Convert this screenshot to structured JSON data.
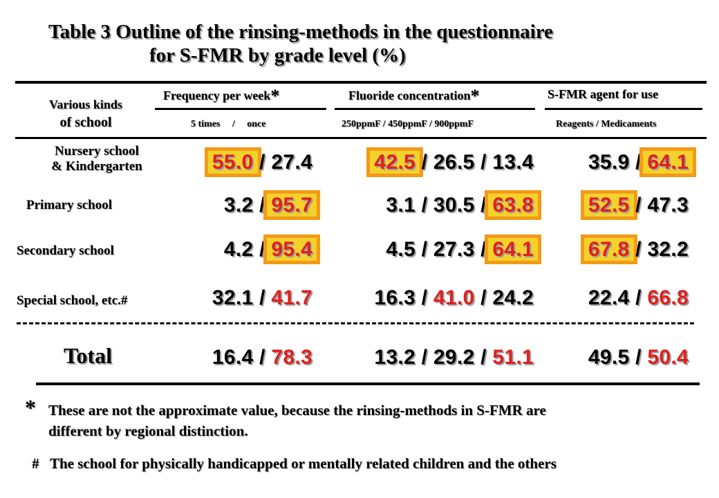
{
  "title": {
    "line1": "Table 3    Outline of the rinsing-methods in the questionnaire",
    "line2": "for S-FMR  by grade level (%)"
  },
  "header": {
    "row_label": [
      "Various kinds",
      "of school"
    ],
    "groups": [
      {
        "title": "Frequency per week",
        "mark": "*",
        "sub": "5 times     /     once"
      },
      {
        "title": "Fluoride concentration",
        "mark": "*",
        "sub": "250ppmF / 450ppmF / 900ppmF"
      },
      {
        "title": "S-FMR agent for use",
        "mark": "",
        "sub": "Reagents / Medicaments"
      }
    ]
  },
  "rows": [
    {
      "label": [
        "Nursery school",
        "& Kindergarten"
      ],
      "cells": [
        [
          {
            "v": "55.0",
            "red": true,
            "hl": true
          },
          {
            "v": "27.4",
            "red": false,
            "hl": false
          }
        ],
        [
          {
            "v": "42.5",
            "red": true,
            "hl": true
          },
          {
            "v": "26.5",
            "red": false,
            "hl": false
          },
          {
            "v": "13.4",
            "red": false,
            "hl": false
          }
        ],
        [
          {
            "v": "35.9",
            "red": false,
            "hl": false
          },
          {
            "v": "64.1",
            "red": true,
            "hl": true
          }
        ]
      ]
    },
    {
      "label": [
        "Primary school"
      ],
      "cells": [
        [
          {
            "v": "3.2",
            "red": false,
            "hl": false
          },
          {
            "v": "95.7",
            "red": true,
            "hl": true
          }
        ],
        [
          {
            "v": "3.1",
            "red": false,
            "hl": false
          },
          {
            "v": "30.5",
            "red": false,
            "hl": false
          },
          {
            "v": "63.8",
            "red": true,
            "hl": true
          }
        ],
        [
          {
            "v": "52.5",
            "red": true,
            "hl": true
          },
          {
            "v": "47.3",
            "red": false,
            "hl": false
          }
        ]
      ]
    },
    {
      "label": [
        "Secondary school"
      ],
      "cells": [
        [
          {
            "v": "4.2",
            "red": false,
            "hl": false
          },
          {
            "v": "95.4",
            "red": true,
            "hl": true
          }
        ],
        [
          {
            "v": "4.5",
            "red": false,
            "hl": false
          },
          {
            "v": "27.3",
            "red": false,
            "hl": false
          },
          {
            "v": "64.1",
            "red": true,
            "hl": true
          }
        ],
        [
          {
            "v": "67.8",
            "red": true,
            "hl": true
          },
          {
            "v": "32.2",
            "red": false,
            "hl": false
          }
        ]
      ]
    },
    {
      "label": [
        "Special school, etc.#"
      ],
      "cells": [
        [
          {
            "v": "32.1",
            "red": false,
            "hl": false
          },
          {
            "v": "41.7",
            "red": true,
            "hl": false
          }
        ],
        [
          {
            "v": "16.3",
            "red": false,
            "hl": false
          },
          {
            "v": "41.0",
            "red": true,
            "hl": false
          },
          {
            "v": "24.2",
            "red": false,
            "hl": false
          }
        ],
        [
          {
            "v": "22.4",
            "red": false,
            "hl": false
          },
          {
            "v": "66.8",
            "red": true,
            "hl": false
          }
        ]
      ]
    },
    {
      "label": [
        "Total"
      ],
      "cells": [
        [
          {
            "v": "16.4",
            "red": false,
            "hl": false
          },
          {
            "v": "78.3",
            "red": true,
            "hl": false
          }
        ],
        [
          {
            "v": "13.2",
            "red": false,
            "hl": false
          },
          {
            "v": "29.2",
            "red": false,
            "hl": false
          },
          {
            "v": "51.1",
            "red": true,
            "hl": false
          }
        ],
        [
          {
            "v": "49.5",
            "red": false,
            "hl": false
          },
          {
            "v": "50.4",
            "red": true,
            "hl": false
          }
        ]
      ]
    }
  ],
  "notes": [
    {
      "mark": "*",
      "text": [
        "These are not the approximate value, because the rinsing-methods in S-FMR are",
        "different by regional distinction."
      ]
    },
    {
      "mark": "#",
      "text": [
        "The school for physically handicapped or mentally related children and the others"
      ]
    }
  ],
  "colors": {
    "accent_red": "#e0201e",
    "highlight_fill": "#f5d12c",
    "highlight_border": "#f39a17"
  }
}
